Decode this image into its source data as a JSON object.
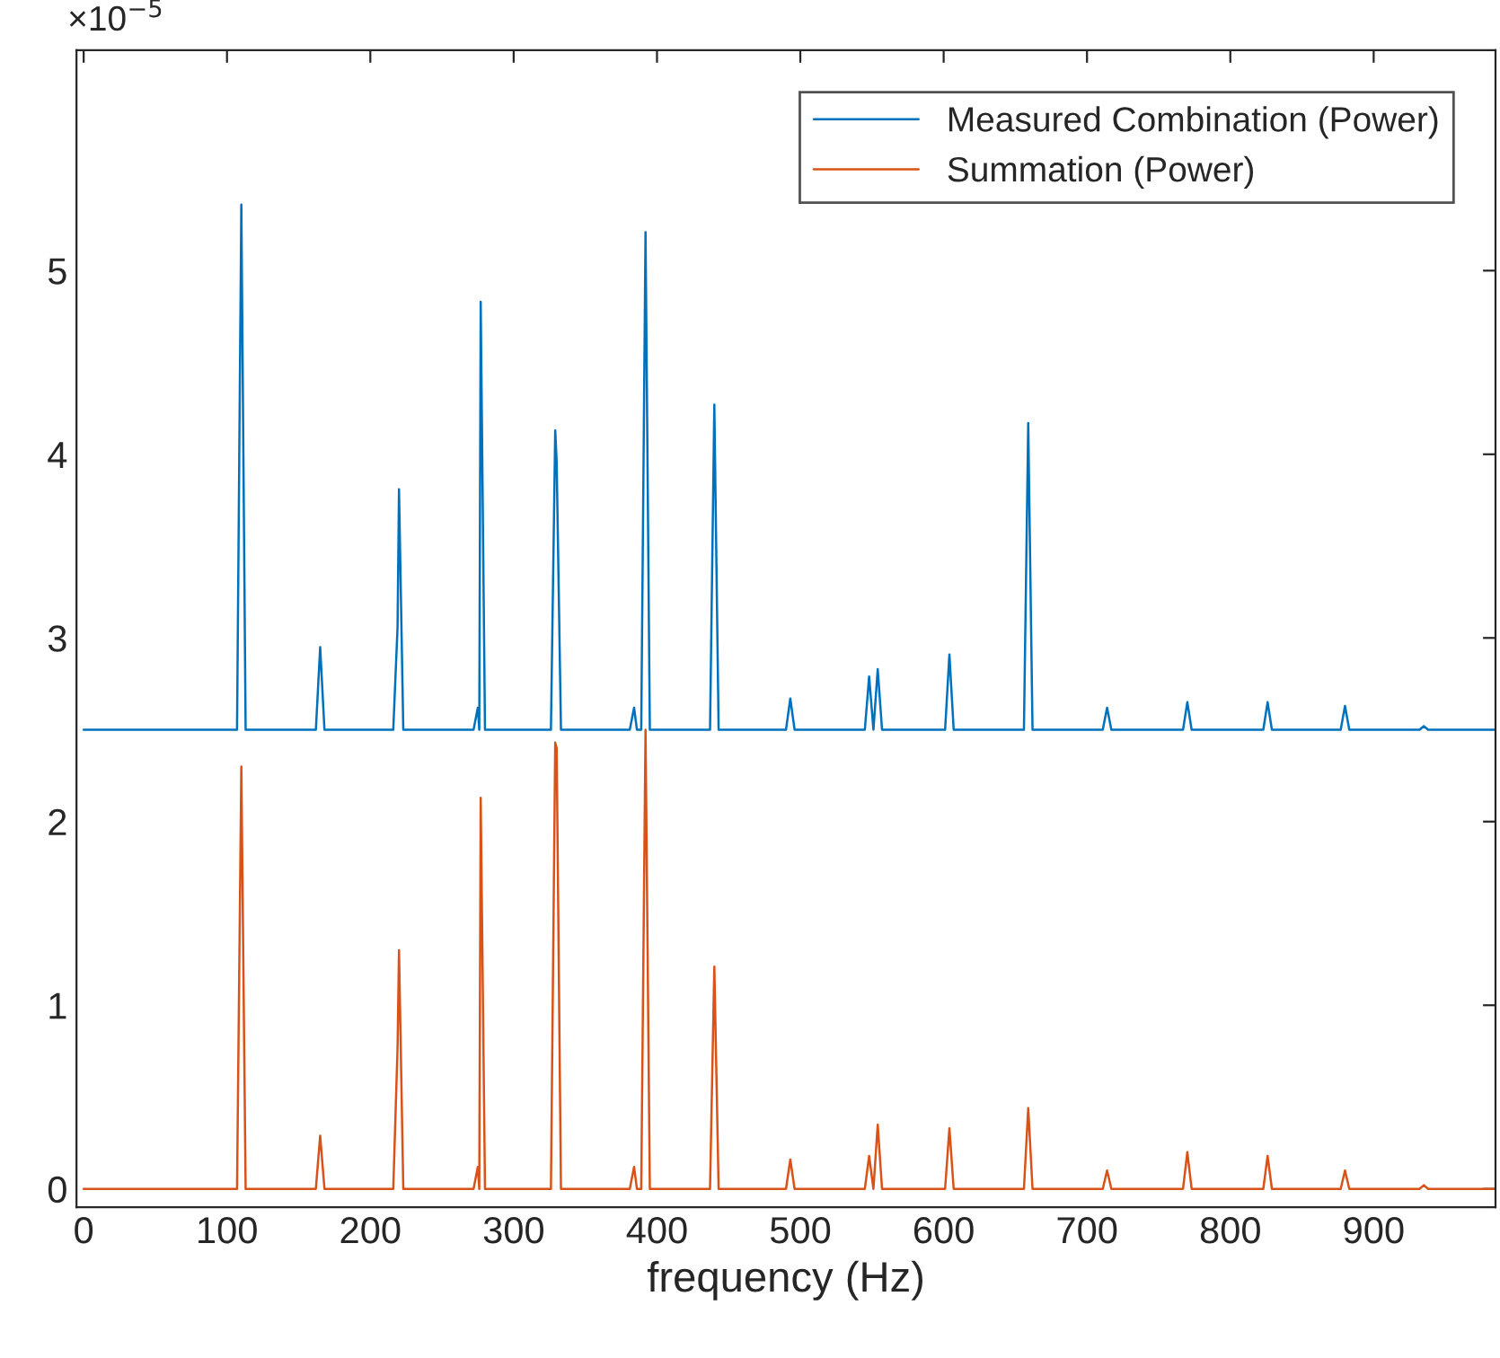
{
  "chart_data": {
    "type": "line",
    "xlabel": "frequency (Hz)",
    "annotations": [
      "×10$^{−5}$"
    ],
    "x": [
      0,
      107,
      110,
      113,
      162,
      165,
      168,
      216,
      219,
      220,
      223,
      272,
      275,
      276,
      277,
      280,
      326,
      329,
      330,
      333,
      381,
      384,
      386,
      389,
      392,
      395,
      437,
      440,
      443,
      490,
      493,
      496,
      545,
      548,
      551,
      554,
      557,
      601,
      604,
      607,
      656,
      659,
      662,
      711,
      714,
      717,
      767,
      770,
      773,
      823,
      826,
      829,
      877,
      880,
      883,
      932,
      935,
      938,
      985
    ],
    "series": [
      {
        "name": "Measured Combination (Power)",
        "color": "#0072bd",
        "values": [
          2.5,
          2.5,
          5.36,
          2.5,
          2.5,
          2.95,
          2.5,
          2.5,
          3.06,
          3.81,
          2.5,
          2.5,
          2.62,
          2.5,
          4.83,
          2.5,
          2.5,
          4.13,
          3.96,
          2.5,
          2.5,
          2.62,
          2.5,
          2.5,
          5.21,
          2.5,
          2.5,
          4.27,
          2.5,
          2.5,
          2.67,
          2.5,
          2.5,
          2.79,
          2.5,
          2.83,
          2.5,
          2.5,
          2.91,
          2.5,
          2.5,
          4.17,
          2.5,
          2.5,
          2.62,
          2.5,
          2.5,
          2.65,
          2.5,
          2.5,
          2.65,
          2.5,
          2.5,
          2.63,
          2.5,
          2.5,
          2.52,
          2.5,
          2.5
        ]
      },
      {
        "name": "Summation (Power)",
        "color": "#d95319",
        "values": [
          0,
          0,
          2.3,
          0,
          0,
          0.29,
          0,
          0,
          0.77,
          1.3,
          0,
          0,
          0.12,
          0,
          2.13,
          0,
          0,
          2.43,
          2.4,
          0,
          0,
          0.12,
          0,
          0,
          2.5,
          0,
          0,
          1.21,
          0,
          0,
          0.16,
          0,
          0,
          0.18,
          0,
          0.35,
          0,
          0,
          0.33,
          0,
          0,
          0.44,
          0,
          0,
          0.1,
          0,
          0,
          0.2,
          0,
          0,
          0.18,
          0,
          0,
          0.1,
          0,
          0,
          0.02,
          0,
          0
        ]
      }
    ],
    "xlim": [
      -5,
      985
    ],
    "ylim": [
      -0.1,
      6.2
    ],
    "xticks": [
      0,
      100,
      200,
      300,
      400,
      500,
      600,
      700,
      800,
      900
    ],
    "yticks": [
      0,
      1,
      2,
      3,
      4,
      5
    ],
    "legend": "top right",
    "grid": false,
    "line_style": "solid",
    "marker": "none"
  }
}
